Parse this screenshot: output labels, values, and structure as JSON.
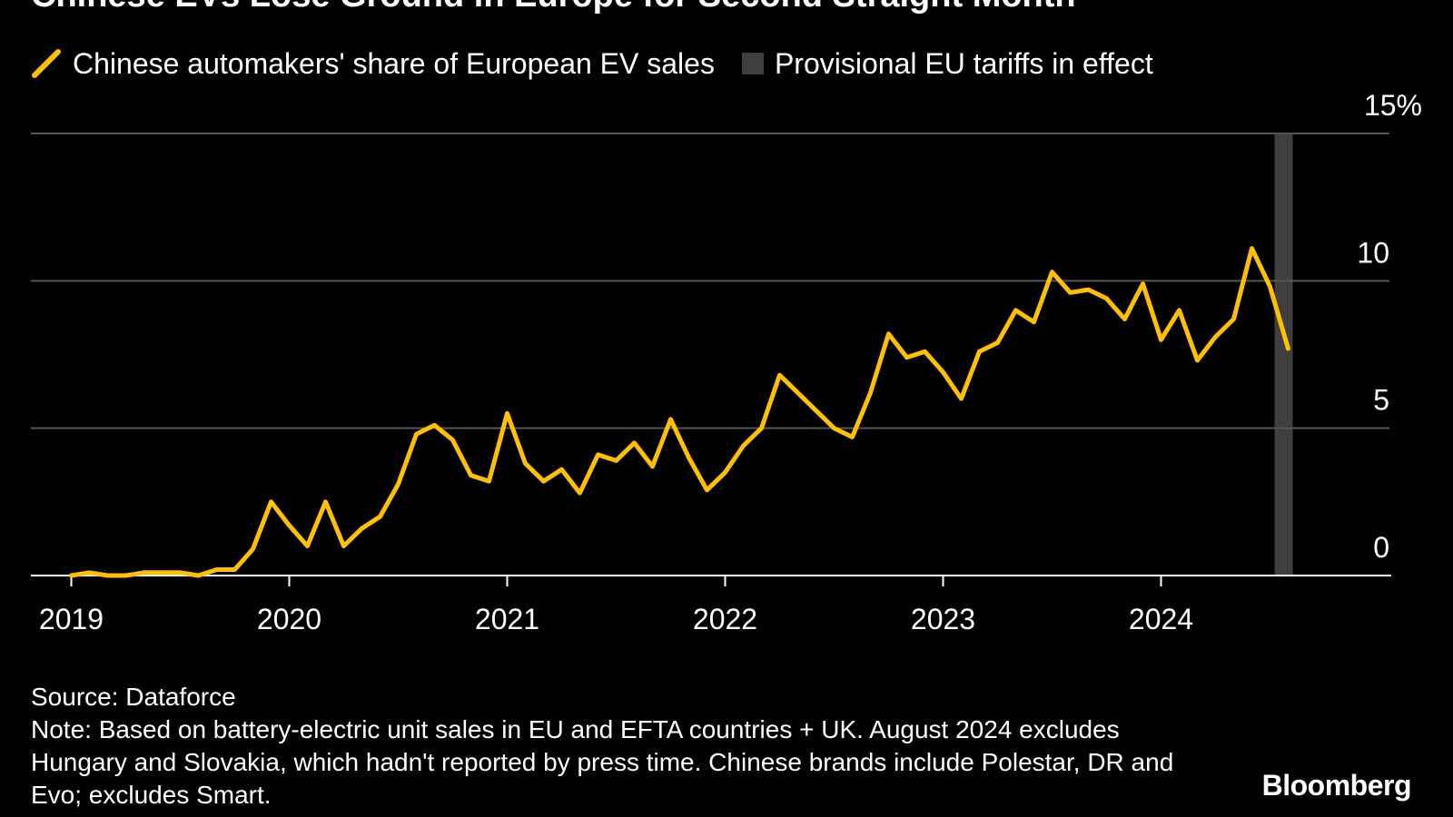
{
  "title": "Chinese EVs Lose Ground in Europe for Second Straight Month",
  "colors": {
    "line": "#ffc000",
    "tariff": "#3f3f3f",
    "grid": "#555555"
  },
  "chart_data": {
    "type": "line",
    "legend": [
      {
        "label": "Chinese automakers' share of European EV sales",
        "kind": "line"
      },
      {
        "label": "Provisional EU tariffs in effect",
        "kind": "band"
      }
    ],
    "x_tick_labels": [
      "2019",
      "2020",
      "2021",
      "2022",
      "2023",
      "2024"
    ],
    "y_tick_labels": [
      "15%",
      "10",
      "5",
      "0"
    ],
    "y_ticks": [
      15,
      10,
      5,
      0
    ],
    "ylim": [
      0,
      15
    ],
    "xlim": [
      "2019-01",
      "2024-12"
    ],
    "grid": true,
    "tariff_band": {
      "start": "2024-07",
      "end": "2024-08"
    },
    "series": [
      {
        "name": "Chinese automakers' share of European EV sales",
        "x": [
          "2019-01",
          "2019-02",
          "2019-03",
          "2019-04",
          "2019-05",
          "2019-06",
          "2019-07",
          "2019-08",
          "2019-09",
          "2019-10",
          "2019-11",
          "2019-12",
          "2020-01",
          "2020-02",
          "2020-03",
          "2020-04",
          "2020-05",
          "2020-06",
          "2020-07",
          "2020-08",
          "2020-09",
          "2020-10",
          "2020-11",
          "2020-12",
          "2021-01",
          "2021-02",
          "2021-03",
          "2021-04",
          "2021-05",
          "2021-06",
          "2021-07",
          "2021-08",
          "2021-09",
          "2021-10",
          "2021-11",
          "2021-12",
          "2022-01",
          "2022-02",
          "2022-03",
          "2022-04",
          "2022-05",
          "2022-06",
          "2022-07",
          "2022-08",
          "2022-09",
          "2022-10",
          "2022-11",
          "2022-12",
          "2023-01",
          "2023-02",
          "2023-03",
          "2023-04",
          "2023-05",
          "2023-06",
          "2023-07",
          "2023-08",
          "2023-09",
          "2023-10",
          "2023-11",
          "2023-12",
          "2024-01",
          "2024-02",
          "2024-03",
          "2024-04",
          "2024-05",
          "2024-06",
          "2024-07",
          "2024-08"
        ],
        "values": [
          0.0,
          0.1,
          0.0,
          0.0,
          0.1,
          0.1,
          0.1,
          0.0,
          0.2,
          0.2,
          0.9,
          2.5,
          1.7,
          1.0,
          2.5,
          1.0,
          1.6,
          2.0,
          3.1,
          4.8,
          5.1,
          4.6,
          3.4,
          3.2,
          5.5,
          3.8,
          3.2,
          3.6,
          2.8,
          4.1,
          3.9,
          4.5,
          3.7,
          5.3,
          4.0,
          2.9,
          3.5,
          4.4,
          5.0,
          6.8,
          6.2,
          5.6,
          5.0,
          4.7,
          6.2,
          8.2,
          7.4,
          7.6,
          6.9,
          6.0,
          7.6,
          7.9,
          9.0,
          8.6,
          10.3,
          9.6,
          9.7,
          9.4,
          8.7,
          9.9,
          8.0,
          9.0,
          7.3,
          8.1,
          8.7,
          11.1,
          9.8,
          7.7
        ]
      }
    ]
  },
  "footer": {
    "source": "Source: Dataforce",
    "note": "Note: Based on battery-electric unit sales in EU and EFTA countries + UK. August 2024 excludes Hungary and Slovakia, which hadn't reported by press time. Chinese brands include Polestar, DR and Evo; excludes Smart."
  },
  "brand": "Bloomberg"
}
